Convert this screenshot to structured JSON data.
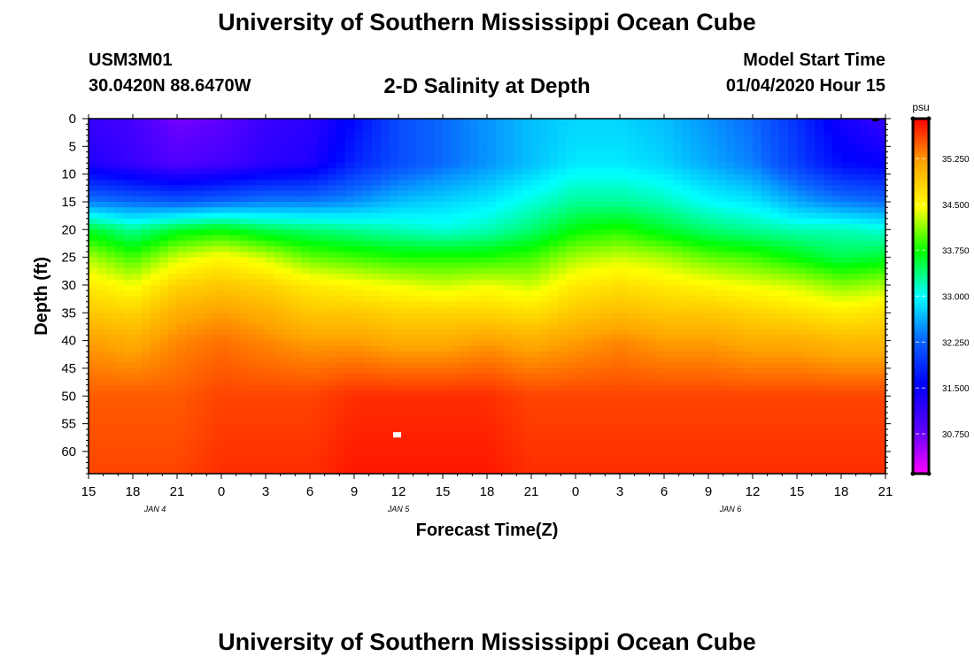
{
  "header": {
    "title_top": "University of Southern Mississippi Ocean Cube",
    "title_bottom": "University of Southern Mississippi Ocean Cube",
    "station_id": "USM3M01",
    "coordinates": "30.0420N 88.6470W",
    "plot_title": "2-D Salinity at Depth",
    "model_start_label": "Model Start Time",
    "model_start_value": "01/04/2020 Hour 15"
  },
  "chart_data": {
    "type": "heatmap",
    "title": "2-D Salinity at Depth",
    "xlabel": "Forecast Time(Z)",
    "ylabel": "Depth (ft)",
    "x_ticks": [
      "15",
      "18",
      "21",
      "0",
      "3",
      "6",
      "9",
      "12",
      "15",
      "18",
      "21",
      "0",
      "3",
      "6",
      "9",
      "12",
      "15",
      "18",
      "21"
    ],
    "x_range_hours": [
      0,
      54
    ],
    "date_labels": [
      {
        "text": "JAN 4",
        "hour": 4.5
      },
      {
        "text": "JAN 5",
        "hour": 21
      },
      {
        "text": "JAN 6",
        "hour": 43.5
      }
    ],
    "y_ticks": [
      0,
      5,
      10,
      15,
      20,
      25,
      30,
      35,
      40,
      45,
      50,
      55,
      60
    ],
    "ylim": [
      0,
      64
    ],
    "colorbar": {
      "unit": "psu",
      "range": [
        30.1,
        35.9
      ],
      "ticks": [
        "35.250",
        "34.500",
        "33.750",
        "33.000",
        "32.250",
        "31.500",
        "30.750"
      ],
      "colors": [
        "#ff00ff",
        "#5a00ff",
        "#0000ff",
        "#0a64ff",
        "#00ffff",
        "#00ff00",
        "#ffff00",
        "#ffa500",
        "#ff0000"
      ]
    },
    "salinity_grid": {
      "hours": [
        0,
        3,
        6,
        9,
        12,
        15,
        18,
        21,
        24,
        27,
        30,
        33,
        36,
        39,
        42,
        45,
        48,
        51,
        54
      ],
      "depths": [
        0,
        8,
        15,
        20,
        25,
        30,
        35,
        40,
        50,
        64
      ],
      "values": [
        [
          31.1,
          31.3,
          32.4,
          33.6,
          34.2,
          34.6,
          34.9,
          35.2,
          35.5,
          35.6
        ],
        [
          31.0,
          31.1,
          32.3,
          33.3,
          33.9,
          34.4,
          34.8,
          35.1,
          35.5,
          35.6
        ],
        [
          30.7,
          30.9,
          32.2,
          33.6,
          34.3,
          34.8,
          35.1,
          35.3,
          35.5,
          35.6
        ],
        [
          30.8,
          31.0,
          32.3,
          33.7,
          34.5,
          34.9,
          35.2,
          35.4,
          35.6,
          35.7
        ],
        [
          31.1,
          31.2,
          32.4,
          33.5,
          34.3,
          34.8,
          35.1,
          35.3,
          35.6,
          35.7
        ],
        [
          31.2,
          31.3,
          32.4,
          33.4,
          34.0,
          34.6,
          34.9,
          35.2,
          35.6,
          35.7
        ],
        [
          31.6,
          31.8,
          32.5,
          33.3,
          33.9,
          34.5,
          34.9,
          35.2,
          35.7,
          35.8
        ],
        [
          32.1,
          32.1,
          32.7,
          33.2,
          33.8,
          34.4,
          34.8,
          35.1,
          35.7,
          35.8
        ],
        [
          32.3,
          32.3,
          32.8,
          33.1,
          33.8,
          34.3,
          34.8,
          35.1,
          35.7,
          35.8
        ],
        [
          32.5,
          32.5,
          32.9,
          33.2,
          33.8,
          34.4,
          34.8,
          35.2,
          35.7,
          35.8
        ],
        [
          32.7,
          32.7,
          33.1,
          33.4,
          33.9,
          34.3,
          34.7,
          35.1,
          35.6,
          35.7
        ],
        [
          32.8,
          32.9,
          33.3,
          33.7,
          34.2,
          34.6,
          34.9,
          35.2,
          35.6,
          35.7
        ],
        [
          32.8,
          32.9,
          33.3,
          33.8,
          34.3,
          34.7,
          35.0,
          35.3,
          35.6,
          35.7
        ],
        [
          32.7,
          32.8,
          33.2,
          33.6,
          34.2,
          34.6,
          34.9,
          35.2,
          35.6,
          35.7
        ],
        [
          32.5,
          32.6,
          33.0,
          33.4,
          34.0,
          34.5,
          34.9,
          35.2,
          35.6,
          35.7
        ],
        [
          32.3,
          32.4,
          32.9,
          33.3,
          33.9,
          34.4,
          34.8,
          35.1,
          35.6,
          35.7
        ],
        [
          31.9,
          32.0,
          32.6,
          33.2,
          33.7,
          34.3,
          34.7,
          35.1,
          35.6,
          35.7
        ],
        [
          31.4,
          31.6,
          32.4,
          33.2,
          33.5,
          34.1,
          34.6,
          35.0,
          35.6,
          35.7
        ],
        [
          31.1,
          31.5,
          32.3,
          33.1,
          33.6,
          34.2,
          34.7,
          35.0,
          35.6,
          35.7
        ]
      ]
    }
  }
}
